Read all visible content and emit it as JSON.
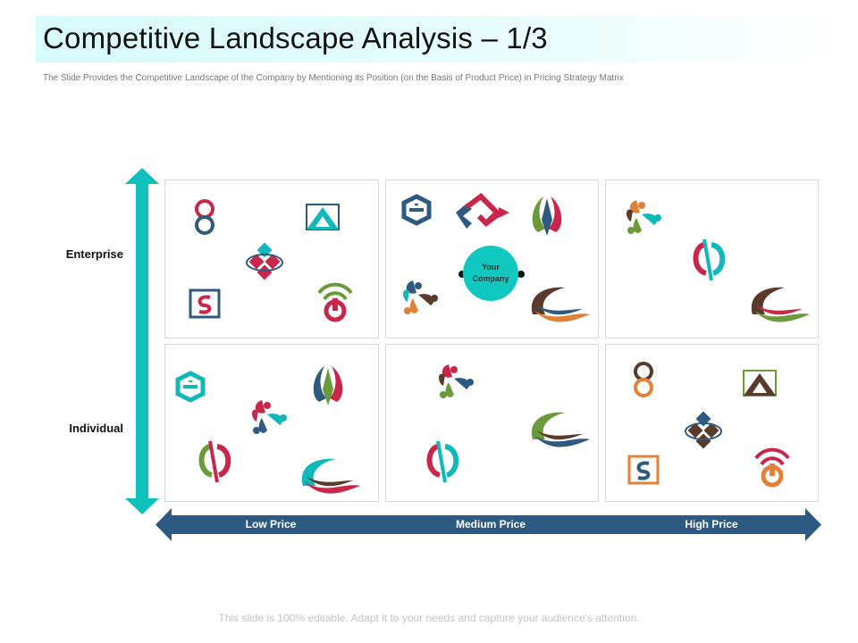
{
  "slide": {
    "title": "Competitive Landscape Analysis – 1/3",
    "subtitle": "The Slide Provides the Competitive Landscape of the Company by Mentioning its Position (on the Basis of Product Price) in Pricing Strategy Matrix",
    "footer": "This slide is 100% editable. Adapt it to your needs and capture your audience's attention."
  },
  "matrix": {
    "rows": [
      "Enterprise",
      "Individual"
    ],
    "columns": [
      "Low Price",
      "Medium Price",
      "High Price"
    ],
    "company_label_line1": "Your",
    "company_label_line2": "Company"
  },
  "colors": {
    "teal": "#10b8b8",
    "navy": "#2f5a80",
    "crimson": "#c8264a",
    "green": "#6a9a3a",
    "brown": "#5a3a2a",
    "orange": "#e0823a"
  }
}
